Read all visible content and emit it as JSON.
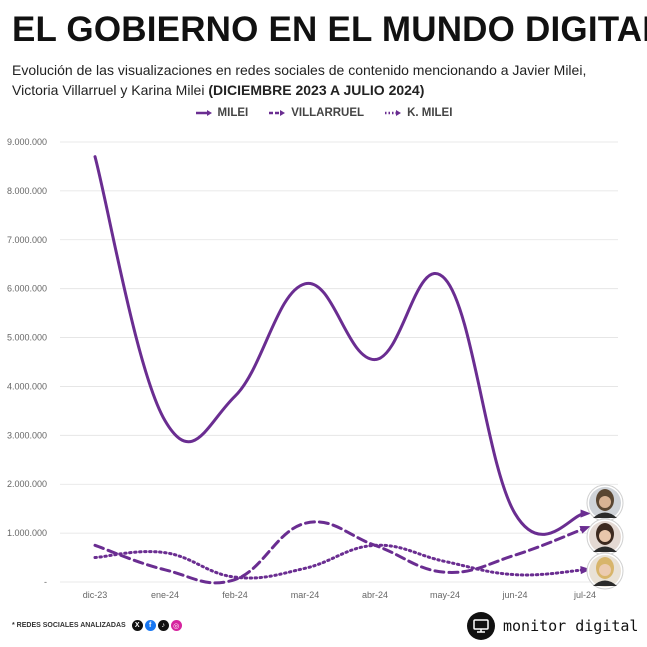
{
  "header": {
    "title": "EL GOBIERNO EN EL MUNDO DIGITAL",
    "subtitle": "Evolución de las visualizaciones en redes sociales de contenido mencionando a Javier Milei, Victoria Villarruel y Karina Milei",
    "subtitle_bold": "(DICIEMBRE 2023 A JULIO 2024)"
  },
  "colors": {
    "series": "#6a2d91",
    "grid": "#e2e2e2",
    "axis_text": "#666666"
  },
  "chart_data": {
    "type": "line",
    "categories": [
      "dic-23",
      "ene-24",
      "feb-24",
      "mar-24",
      "abr-24",
      "may-24",
      "jun-24",
      "jul-24"
    ],
    "series": [
      {
        "name": "MILEI",
        "style": "solid",
        "values": [
          8700000,
          3300000,
          3800000,
          6100000,
          4550000,
          6200000,
          1400000,
          1400000
        ]
      },
      {
        "name": "VILLARRUEL",
        "style": "dashed",
        "values": [
          750000,
          250000,
          50000,
          1200000,
          750000,
          200000,
          550000,
          1100000
        ]
      },
      {
        "name": "K. MILEI",
        "style": "dotted",
        "values": [
          500000,
          600000,
          100000,
          280000,
          750000,
          420000,
          150000,
          250000
        ]
      }
    ],
    "y_ticks": [
      "-",
      "1.000.000",
      "2.000.000",
      "3.000.000",
      "4.000.000",
      "5.000.000",
      "6.000.000",
      "7.000.000",
      "8.000.000",
      "9.000.000"
    ],
    "ylim": [
      0,
      9000000
    ],
    "grid": true,
    "legend_position": "top-center",
    "end_markers": [
      "javier-milei-avatar",
      "victoria-villarruel-avatar",
      "karina-milei-avatar"
    ]
  },
  "footer": {
    "note": "* REDES SOCIALES ANALIZADAS",
    "social_icons": [
      "x-icon",
      "facebook-icon",
      "tiktok-icon",
      "instagram-icon"
    ],
    "brand": "monitor digital"
  }
}
